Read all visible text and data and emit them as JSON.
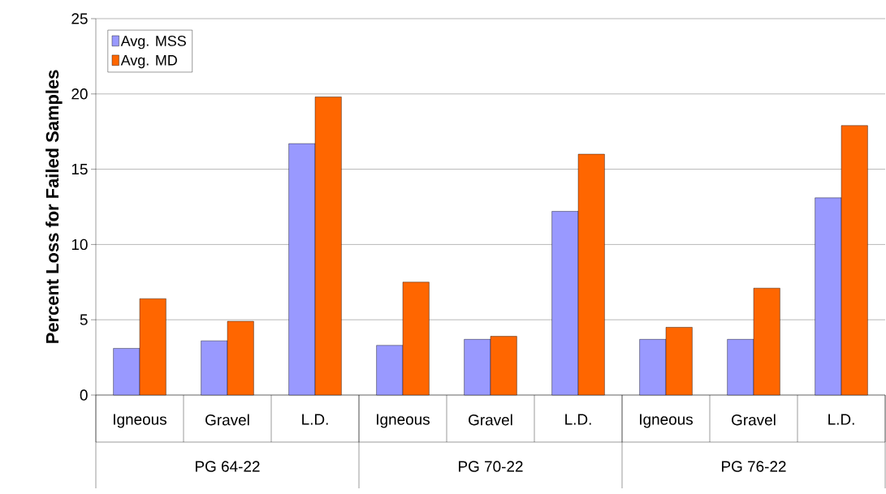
{
  "chart_data": {
    "type": "bar",
    "ylabel": "Percent Loss for Failed Samples",
    "categories": [
      "Igneous",
      "Gravel",
      "L.D.",
      "Igneous",
      "Gravel",
      "L.D.",
      "Igneous",
      "Gravel",
      "L.D."
    ],
    "series": [
      {
        "name": "Avg. MSS",
        "color": "#9999ff",
        "values": [
          3.1,
          3.6,
          16.7,
          3.3,
          3.7,
          12.2,
          3.7,
          3.7,
          13.1
        ]
      },
      {
        "name": "Avg. MD",
        "color": "#ff6600",
        "values": [
          6.4,
          4.9,
          19.8,
          7.5,
          3.9,
          16.0,
          4.5,
          7.1,
          17.9
        ]
      }
    ],
    "annotations": [
      "PG 64-22",
      "PG 70-22",
      "PG 76-22"
    ],
    "ylim": [
      0,
      25
    ],
    "yticks": [
      0,
      5,
      10,
      15,
      20,
      25
    ],
    "grid": "y",
    "legend": "top left"
  }
}
